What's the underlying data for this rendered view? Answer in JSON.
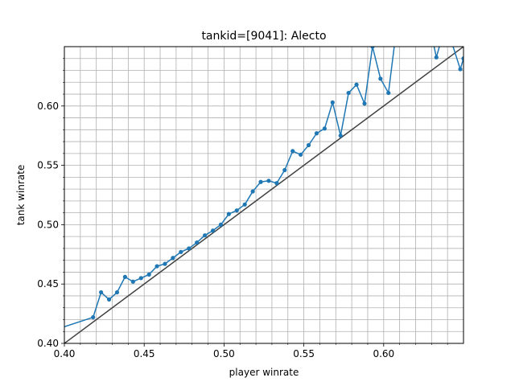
{
  "chart_data": {
    "type": "line",
    "title": "tankid=[9041]: Alecto",
    "xlabel": "player winrate",
    "ylabel": "tank winrate",
    "xlim": [
      0.4,
      0.65
    ],
    "ylim": [
      0.4,
      0.65
    ],
    "x_ticks": [
      "0.40",
      "0.45",
      "0.50",
      "0.55",
      "0.60"
    ],
    "y_ticks": [
      "0.40",
      "0.45",
      "0.50",
      "0.55",
      "0.60"
    ],
    "grid": "on (minor gridlines every 0.01)",
    "colors": {
      "series": "#1f77b4",
      "reference": "#404040",
      "grid": "#b0b0b0"
    },
    "series": [
      {
        "values": [
          [
            0.4,
            0.414
          ],
          [
            0.418,
            0.422
          ],
          [
            0.423,
            0.443
          ],
          [
            0.428,
            0.437
          ],
          [
            0.433,
            0.443
          ],
          [
            0.438,
            0.456
          ],
          [
            0.443,
            0.452
          ],
          [
            0.448,
            0.455
          ],
          [
            0.453,
            0.458
          ],
          [
            0.458,
            0.465
          ],
          [
            0.463,
            0.467
          ],
          [
            0.468,
            0.472
          ],
          [
            0.473,
            0.477
          ],
          [
            0.478,
            0.48
          ],
          [
            0.483,
            0.485
          ],
          [
            0.488,
            0.491
          ],
          [
            0.493,
            0.495
          ],
          [
            0.498,
            0.5
          ],
          [
            0.503,
            0.509
          ],
          [
            0.508,
            0.512
          ],
          [
            0.513,
            0.517
          ],
          [
            0.518,
            0.528
          ],
          [
            0.523,
            0.536
          ],
          [
            0.528,
            0.537
          ],
          [
            0.533,
            0.535
          ],
          [
            0.538,
            0.546
          ],
          [
            0.543,
            0.562
          ],
          [
            0.548,
            0.559
          ],
          [
            0.553,
            0.567
          ],
          [
            0.558,
            0.577
          ],
          [
            0.563,
            0.581
          ],
          [
            0.568,
            0.603
          ],
          [
            0.573,
            0.575
          ],
          [
            0.578,
            0.611
          ],
          [
            0.583,
            0.618
          ],
          [
            0.588,
            0.602
          ],
          [
            0.593,
            0.65
          ],
          [
            0.598,
            0.623
          ],
          [
            0.603,
            0.611
          ],
          [
            0.608,
            0.665
          ],
          [
            0.63,
            0.66
          ],
          [
            0.633,
            0.641
          ],
          [
            0.638,
            0.665
          ],
          [
            0.643,
            0.652
          ],
          [
            0.648,
            0.631
          ],
          [
            0.65,
            0.64
          ]
        ]
      },
      {
        "values": [
          [
            0.4,
            0.4
          ],
          [
            0.65,
            0.65
          ]
        ]
      }
    ]
  }
}
